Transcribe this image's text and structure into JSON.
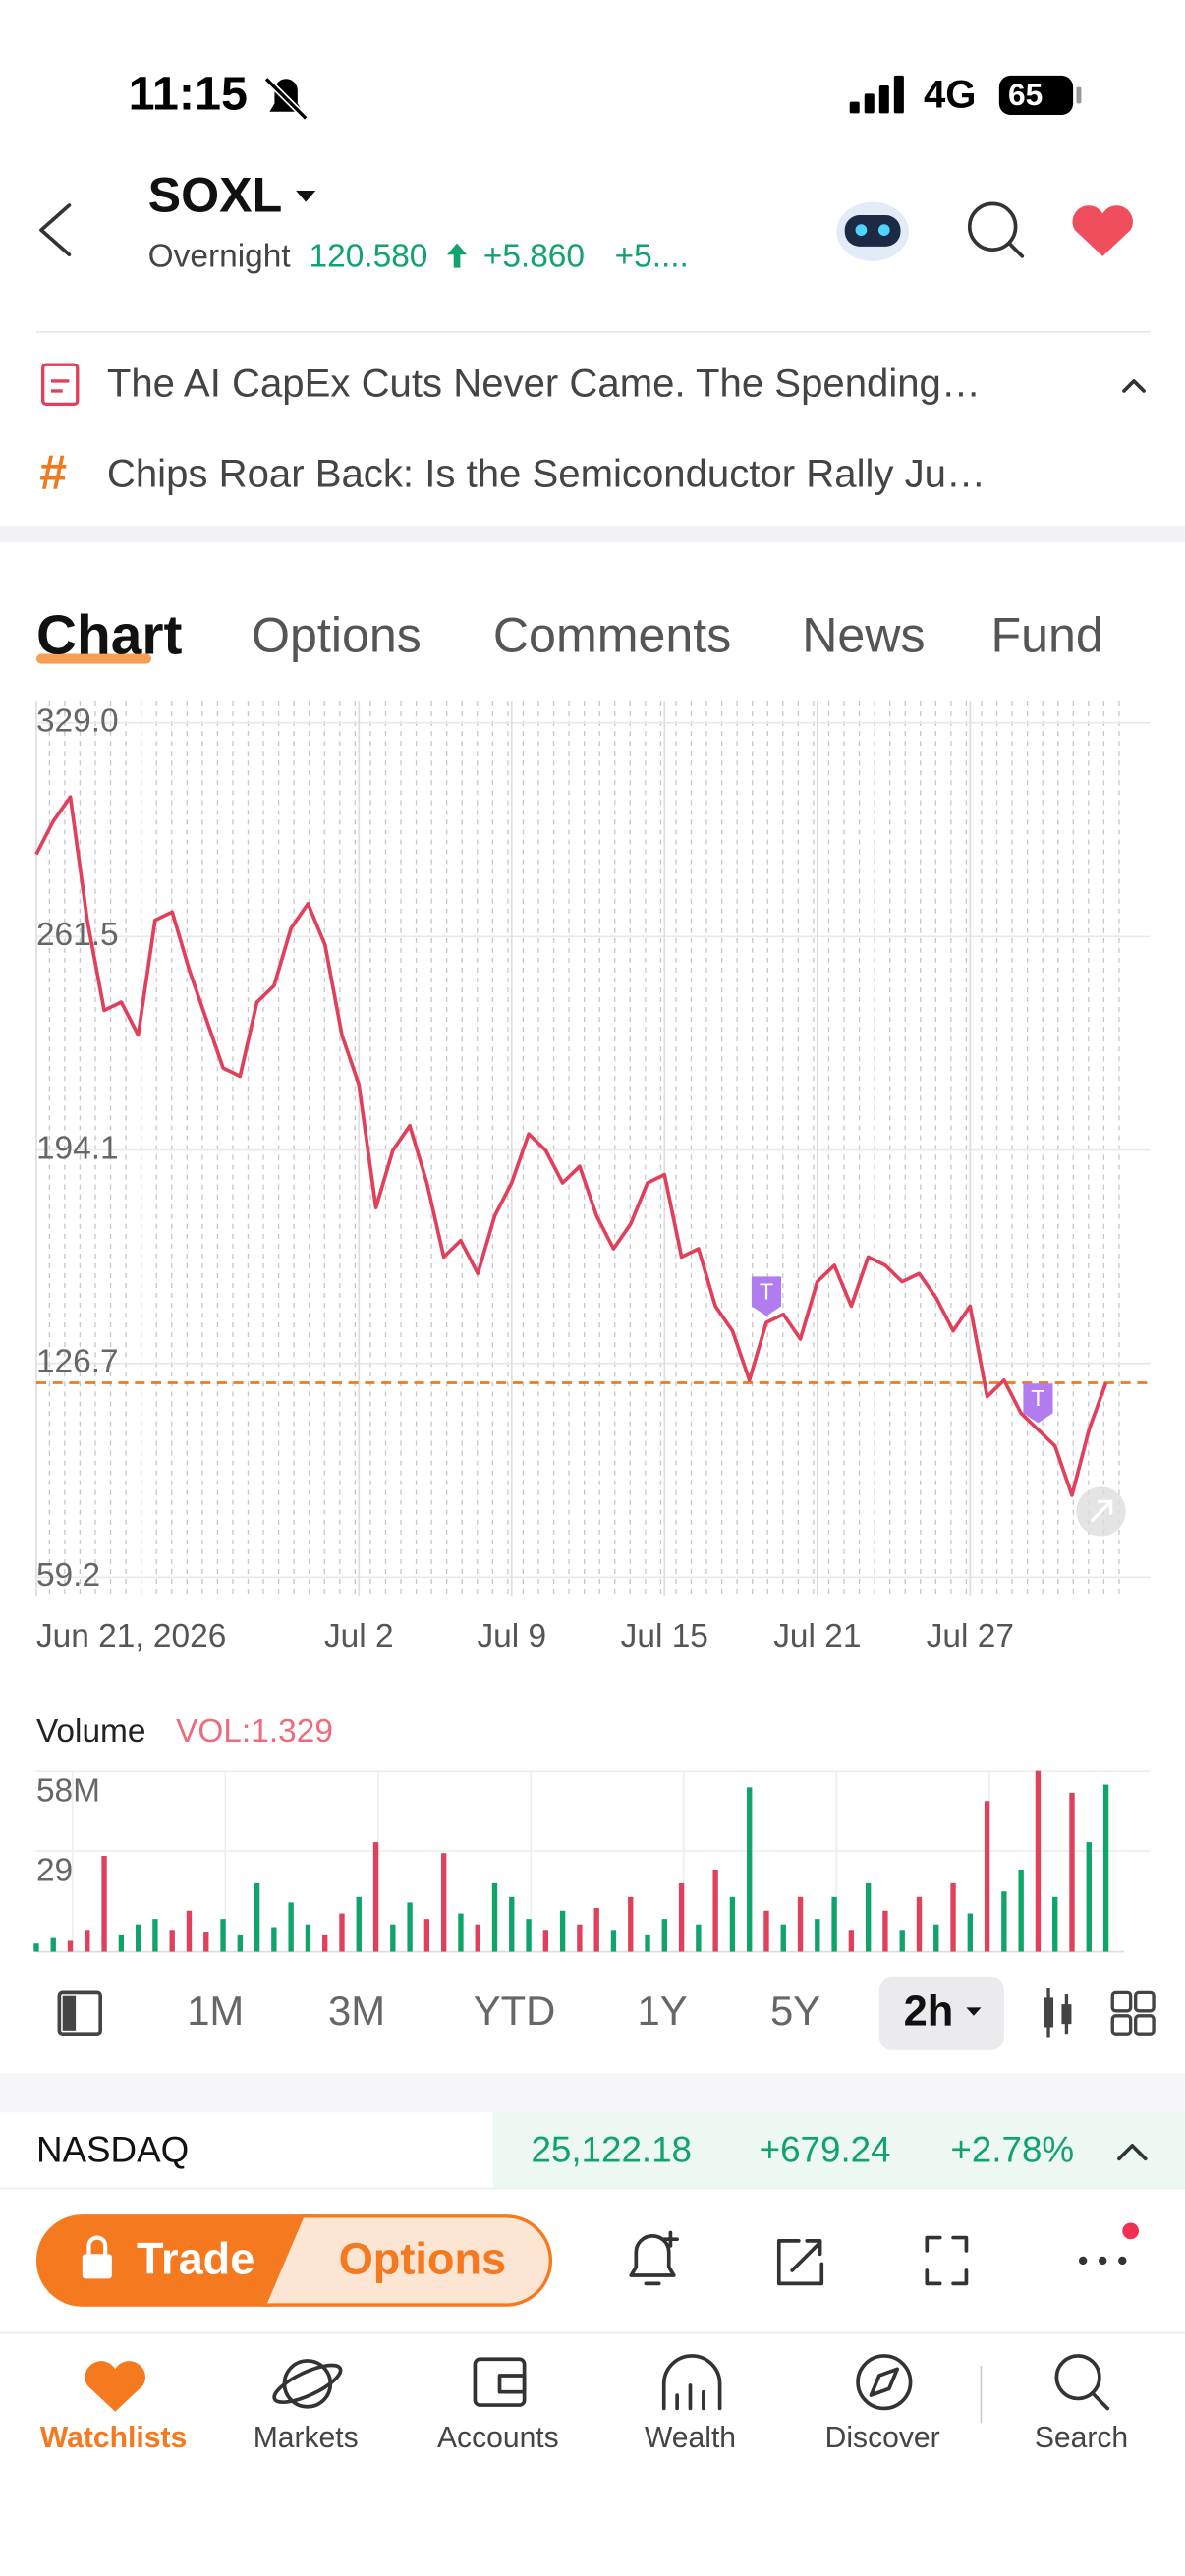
{
  "status_bar": {
    "time": "11:15",
    "network": "4G",
    "battery": "65"
  },
  "header": {
    "symbol": "SOXL",
    "session": "Overnight",
    "price": "120.580",
    "change": "+5.860",
    "change_pct": "+5...."
  },
  "news": [
    "The AI CapEx Cuts Never Came. The Spending…",
    "Chips Roar Back: Is the Semiconductor Rally Ju…"
  ],
  "tabs": [
    "Chart",
    "Options",
    "Comments",
    "News",
    "Fund"
  ],
  "chart_data": [
    {
      "type": "line",
      "color": "#e0405a",
      "categories": [
        "Jun 21, 2026",
        null,
        null,
        null,
        null,
        null,
        null,
        null,
        null,
        null,
        null,
        null,
        null,
        null,
        null,
        null,
        null,
        null,
        null,
        "Jul 2",
        null,
        null,
        null,
        null,
        null,
        null,
        null,
        null,
        "Jul 9",
        null,
        null,
        null,
        null,
        null,
        null,
        null,
        null,
        "Jul 15",
        null,
        null,
        null,
        null,
        null,
        null,
        null,
        null,
        "Jul 21",
        null,
        null,
        null,
        null,
        null,
        null,
        null,
        null,
        "Jul 27",
        null,
        null,
        null,
        null,
        null,
        null,
        null,
        null
      ],
      "values": [
        287.5,
        297.9,
        305.6,
        266.7,
        238.2,
        240.8,
        230.4,
        266.7,
        269.3,
        251.1,
        235.6,
        220,
        217.4,
        240.8,
        246,
        264.1,
        271.9,
        258.9,
        230.4,
        214.8,
        175.9,
        194,
        201.8,
        183.7,
        160.3,
        165.5,
        155.1,
        173.3,
        183.7,
        199.2,
        194,
        183.7,
        188.9,
        173.3,
        162.9,
        170.7,
        183.7,
        186.3,
        160.3,
        162.9,
        144.8,
        137,
        121.4,
        139.6,
        142.2,
        134.4,
        152.5,
        157.7,
        144.8,
        160.3,
        157.7,
        152.5,
        155.1,
        147.4,
        137,
        144.8,
        116.2,
        121.4,
        111,
        105.8,
        100.6,
        85.1,
        105.8,
        120.58
      ],
      "ylim": [
        59.2,
        329.0
      ],
      "yticks": [
        {
          "value": 329.0,
          "label": "329.0"
        },
        261.5,
        194.1,
        126.7,
        59.2
      ],
      "reference_line": {
        "value": 120.58,
        "color": "#f07a1a"
      },
      "event_markers": [
        {
          "label": "T",
          "index": 43
        },
        {
          "label": "T",
          "index": 59
        }
      ]
    },
    {
      "type": "bar",
      "title": "Volume",
      "subtitle": "VOL:1.329",
      "values": [
        3,
        5,
        4,
        8,
        35,
        6,
        10,
        12,
        8,
        15,
        7,
        12,
        6,
        25,
        9,
        18,
        10,
        6,
        14,
        20,
        40,
        10,
        18,
        12,
        36,
        14,
        10,
        25,
        20,
        12,
        8,
        15,
        10,
        16,
        8,
        20,
        6,
        12,
        25,
        10,
        30,
        20,
        60,
        15,
        10,
        20,
        12,
        20,
        8,
        25,
        15,
        8,
        20,
        10,
        25,
        14,
        55,
        22,
        30,
        66,
        20,
        58,
        40,
        61
      ],
      "colors": [
        "#10a36b",
        "#10a36b",
        "#e0405a",
        "#e0405a",
        "#e0405a",
        "#10a36b",
        "#10a36b",
        "#10a36b",
        "#e0405a",
        "#e0405a",
        "#e0405a",
        "#10a36b",
        "#10a36b",
        "#10a36b",
        "#10a36b",
        "#10a36b",
        "#10a36b",
        "#e0405a",
        "#e0405a",
        "#10a36b",
        "#e0405a",
        "#10a36b",
        "#10a36b",
        "#e0405a",
        "#e0405a",
        "#10a36b",
        "#e0405a",
        "#10a36b",
        "#10a36b",
        "#10a36b",
        "#e0405a",
        "#10a36b",
        "#e0405a",
        "#e0405a",
        "#10a36b",
        "#e0405a",
        "#10a36b",
        "#10a36b",
        "#e0405a",
        "#10a36b",
        "#e0405a",
        "#10a36b",
        "#10a36b",
        "#e0405a",
        "#10a36b",
        "#e0405a",
        "#10a36b",
        "#10a36b",
        "#e0405a",
        "#10a36b",
        "#e0405a",
        "#10a36b",
        "#e0405a",
        "#10a36b",
        "#e0405a",
        "#10a36b",
        "#e0405a",
        "#10a36b",
        "#10a36b",
        "#e0405a",
        "#10a36b",
        "#e0405a",
        "#10a36b",
        "#10a36b"
      ],
      "ylim": [
        0,
        66
      ],
      "yticks": [
        {
          "value": 58,
          "label": "58M"
        },
        29
      ]
    }
  ],
  "periods": [
    "1M",
    "3M",
    "YTD",
    "1Y",
    "5Y",
    "2h"
  ],
  "index_row": {
    "name": "NASDAQ",
    "value": "25,122.18",
    "change": "+679.24",
    "change_pct": "+2.78%"
  },
  "actions": {
    "trade": "Trade",
    "options": "Options"
  },
  "nav": [
    "Watchlists",
    "Markets",
    "Accounts",
    "Wealth",
    "Discover",
    "Search"
  ]
}
